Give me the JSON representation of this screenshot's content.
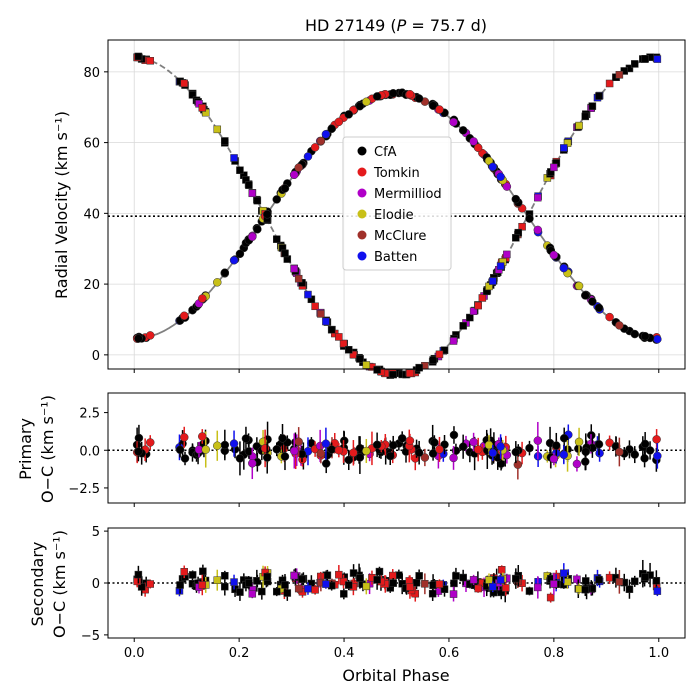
{
  "chart_data": [
    {
      "type": "scatter",
      "panel": "top",
      "title": "HD 27149  (P = 75.7 d)",
      "title_main": "HD 27149  (",
      "title_p": "P",
      "title_period": " = 75.7 d)",
      "ylabel": "Radial Velocity (km s⁻¹)",
      "xlim": [
        -0.05,
        1.05
      ],
      "ylim": [
        -4,
        89
      ],
      "yticks": [
        0,
        20,
        40,
        60,
        80
      ],
      "gamma": 39.2,
      "legend_position": "center",
      "curve": {
        "K1": 34.6,
        "K2": 44.8,
        "e": 0.0,
        "primary_style": "solid",
        "secondary_style": "dashed"
      },
      "legend": [
        {
          "label": "CfA",
          "color": "#000000"
        },
        {
          "label": "Tomkin",
          "color": "#e41a1c"
        },
        {
          "label": "Mermilliod",
          "color": "#b000c8"
        },
        {
          "label": "Elodie",
          "color": "#c8c018"
        },
        {
          "label": "McClure",
          "color": "#a0302a"
        },
        {
          "label": "Batten",
          "color": "#1010ee"
        }
      ],
      "markers": {
        "primary": "circle",
        "secondary": "square"
      }
    },
    {
      "type": "scatter",
      "panel": "middle",
      "ylabel_line1": "Primary",
      "ylabel_line2": "O−C (km s⁻¹)",
      "xlim": [
        -0.05,
        1.05
      ],
      "ylim": [
        -3.5,
        3.8
      ],
      "yticks": [
        -2.5,
        0.0,
        2.5
      ],
      "ytick_labels": [
        "−2.5",
        "0.0",
        "2.5"
      ]
    },
    {
      "type": "scatter",
      "panel": "bottom",
      "ylabel_line1": "Secondary",
      "ylabel_line2": "O−C (km s⁻¹)",
      "xlabel": "Orbital Phase",
      "xlim": [
        -0.05,
        1.05
      ],
      "ylim": [
        -5.3,
        5.3
      ],
      "yticks": [
        -5,
        0,
        5
      ],
      "ytick_labels": [
        "−5",
        "0",
        "5"
      ],
      "xticks": [
        0.0,
        0.2,
        0.4,
        0.6,
        0.8,
        1.0
      ],
      "xtick_labels": [
        "0.0",
        "0.2",
        "0.4",
        "0.6",
        "0.8",
        "1.0"
      ]
    }
  ]
}
